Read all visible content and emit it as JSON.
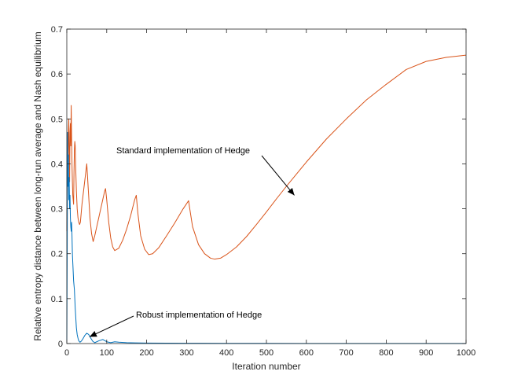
{
  "chart_data": {
    "type": "line",
    "title": "",
    "xlabel": "Iteration number",
    "ylabel": "Relative entropy distance between long-run average and Nash equilibrium",
    "xlim": [
      0,
      1000
    ],
    "ylim": [
      0,
      0.7
    ],
    "xticks": [
      0,
      100,
      200,
      300,
      400,
      500,
      600,
      700,
      800,
      900,
      1000
    ],
    "yticks": [
      0,
      0.1,
      0.2,
      0.3,
      0.4,
      0.5,
      0.6,
      0.7
    ],
    "xtick_labels": [
      "0",
      "100",
      "200",
      "300",
      "400",
      "500",
      "600",
      "700",
      "800",
      "900",
      "1000"
    ],
    "ytick_labels": [
      "0",
      "0.1",
      "0.2",
      "0.3",
      "0.4",
      "0.5",
      "0.6",
      "0.7"
    ],
    "grid": false,
    "legend": "none",
    "series": [
      {
        "color": "#d95319",
        "x": [
          0,
          1,
          2,
          3,
          4,
          5,
          6,
          7,
          8,
          9,
          10,
          11,
          12,
          13,
          14,
          15,
          16,
          17,
          18,
          19,
          20,
          21,
          22,
          24,
          26,
          28,
          30,
          32,
          34,
          36,
          38,
          42,
          46,
          50,
          52,
          54,
          58,
          62,
          66,
          70,
          75,
          80,
          85,
          90,
          95,
          97,
          100,
          105,
          110,
          115,
          120,
          130,
          140,
          150,
          160,
          170,
          174,
          178,
          185,
          195,
          205,
          215,
          230,
          250,
          270,
          290,
          305,
          308,
          315,
          330,
          345,
          360,
          370,
          385,
          400,
          425,
          450,
          475,
          500,
          525,
          550,
          575,
          600,
          650,
          700,
          750,
          800,
          850,
          900,
          950,
          1000
        ],
        "y": [
          0.25,
          0.33,
          0.45,
          0.38,
          0.47,
          0.5,
          0.42,
          0.36,
          0.47,
          0.49,
          0.44,
          0.53,
          0.46,
          0.4,
          0.36,
          0.33,
          0.32,
          0.31,
          0.38,
          0.43,
          0.45,
          0.44,
          0.4,
          0.34,
          0.3,
          0.28,
          0.27,
          0.265,
          0.27,
          0.29,
          0.31,
          0.34,
          0.37,
          0.4,
          0.37,
          0.34,
          0.28,
          0.245,
          0.227,
          0.24,
          0.26,
          0.28,
          0.3,
          0.32,
          0.34,
          0.345,
          0.32,
          0.27,
          0.235,
          0.215,
          0.207,
          0.212,
          0.23,
          0.255,
          0.285,
          0.32,
          0.33,
          0.29,
          0.24,
          0.21,
          0.198,
          0.2,
          0.213,
          0.24,
          0.268,
          0.298,
          0.318,
          0.3,
          0.26,
          0.22,
          0.2,
          0.19,
          0.188,
          0.19,
          0.198,
          0.215,
          0.238,
          0.265,
          0.293,
          0.322,
          0.35,
          0.377,
          0.404,
          0.455,
          0.5,
          0.542,
          0.577,
          0.61,
          0.628,
          0.637,
          0.642
        ]
      },
      {
        "color": "#0072bd",
        "x": [
          0,
          1,
          2,
          3,
          4,
          5,
          6,
          7,
          8,
          9,
          10,
          11,
          12,
          13,
          14,
          15,
          16,
          17,
          18,
          19,
          20,
          21,
          22,
          23,
          24,
          26,
          28,
          30,
          33,
          36,
          40,
          45,
          50,
          55,
          60,
          65,
          70,
          80,
          90,
          100,
          110,
          120,
          130,
          150,
          170,
          200,
          250,
          300,
          400,
          500,
          600,
          700,
          800,
          900,
          1000
        ],
        "y": [
          0.0,
          0.2,
          0.47,
          0.35,
          0.42,
          0.32,
          0.37,
          0.3,
          0.33,
          0.28,
          0.26,
          0.25,
          0.27,
          0.24,
          0.2,
          0.18,
          0.16,
          0.14,
          0.13,
          0.12,
          0.1,
          0.08,
          0.065,
          0.05,
          0.035,
          0.02,
          0.012,
          0.006,
          0.003,
          0.005,
          0.01,
          0.018,
          0.023,
          0.02,
          0.012,
          0.005,
          0.002,
          0.006,
          0.009,
          0.004,
          0.002,
          0.004,
          0.003,
          0.002,
          0.0015,
          0.001,
          0.0008,
          0.0006,
          0.0005,
          0.0004,
          0.0003,
          0.0003,
          0.0002,
          0.0002,
          0.0002
        ]
      }
    ],
    "annotations": [
      {
        "text": "Standard implementation of Hedge",
        "target_x": 570,
        "target_y": 0.33
      },
      {
        "text": "Robust implementation of Hedge",
        "target_x": 57,
        "target_y": 0.015
      }
    ]
  }
}
